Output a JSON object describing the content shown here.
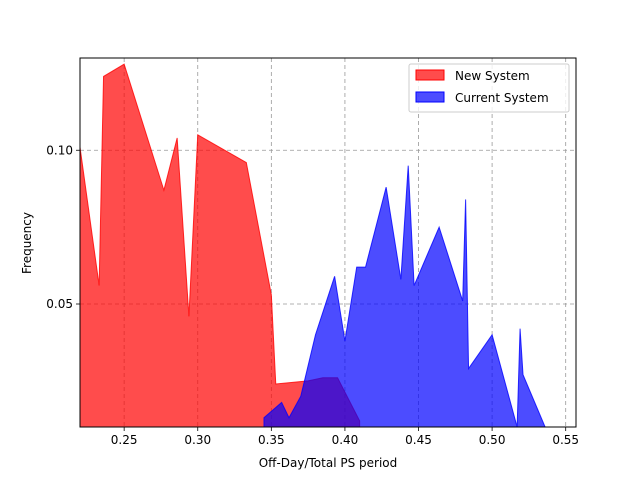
{
  "chart_data": {
    "type": "area",
    "title": "",
    "xlabel": "Off-Day/Total PS period",
    "ylabel": "Frequency",
    "xlim": [
      0.22,
      0.557
    ],
    "ylim": [
      0.01,
      0.13
    ],
    "x_ticks": [
      0.25,
      0.3,
      0.35,
      0.4,
      0.45,
      0.5,
      0.55
    ],
    "x_tick_labels": [
      "0.25",
      "0.30",
      "0.35",
      "0.40",
      "0.45",
      "0.50",
      "0.55"
    ],
    "y_ticks": [
      0.05,
      0.1
    ],
    "y_tick_labels": [
      "0.05",
      "0.10"
    ],
    "grid": true,
    "legend_position": "top-right",
    "series": [
      {
        "name": "New System",
        "color": "#ff0000",
        "opacity": 0.7,
        "points": [
          [
            0.22,
            0.101
          ],
          [
            0.233,
            0.056
          ],
          [
            0.236,
            0.124
          ],
          [
            0.25,
            0.128
          ],
          [
            0.277,
            0.087
          ],
          [
            0.286,
            0.104
          ],
          [
            0.294,
            0.046
          ],
          [
            0.3,
            0.105
          ],
          [
            0.333,
            0.096
          ],
          [
            0.35,
            0.053
          ],
          [
            0.353,
            0.024
          ],
          [
            0.375,
            0.025
          ],
          [
            0.385,
            0.026
          ],
          [
            0.395,
            0.026
          ],
          [
            0.41,
            0.012
          ]
        ]
      },
      {
        "name": "Current System",
        "color": "#0000ff",
        "opacity": 0.7,
        "points": [
          [
            0.345,
            0.013
          ],
          [
            0.357,
            0.018
          ],
          [
            0.362,
            0.013
          ],
          [
            0.37,
            0.02
          ],
          [
            0.38,
            0.04
          ],
          [
            0.393,
            0.059
          ],
          [
            0.4,
            0.038
          ],
          [
            0.408,
            0.062
          ],
          [
            0.414,
            0.062
          ],
          [
            0.428,
            0.088
          ],
          [
            0.438,
            0.058
          ],
          [
            0.443,
            0.095
          ],
          [
            0.447,
            0.056
          ],
          [
            0.464,
            0.075
          ],
          [
            0.48,
            0.051
          ],
          [
            0.482,
            0.084
          ],
          [
            0.484,
            0.029
          ],
          [
            0.5,
            0.04
          ],
          [
            0.517,
            0.01
          ],
          [
            0.519,
            0.042
          ],
          [
            0.521,
            0.027
          ],
          [
            0.536,
            0.01
          ],
          [
            0.555,
            0.01
          ]
        ]
      }
    ]
  }
}
